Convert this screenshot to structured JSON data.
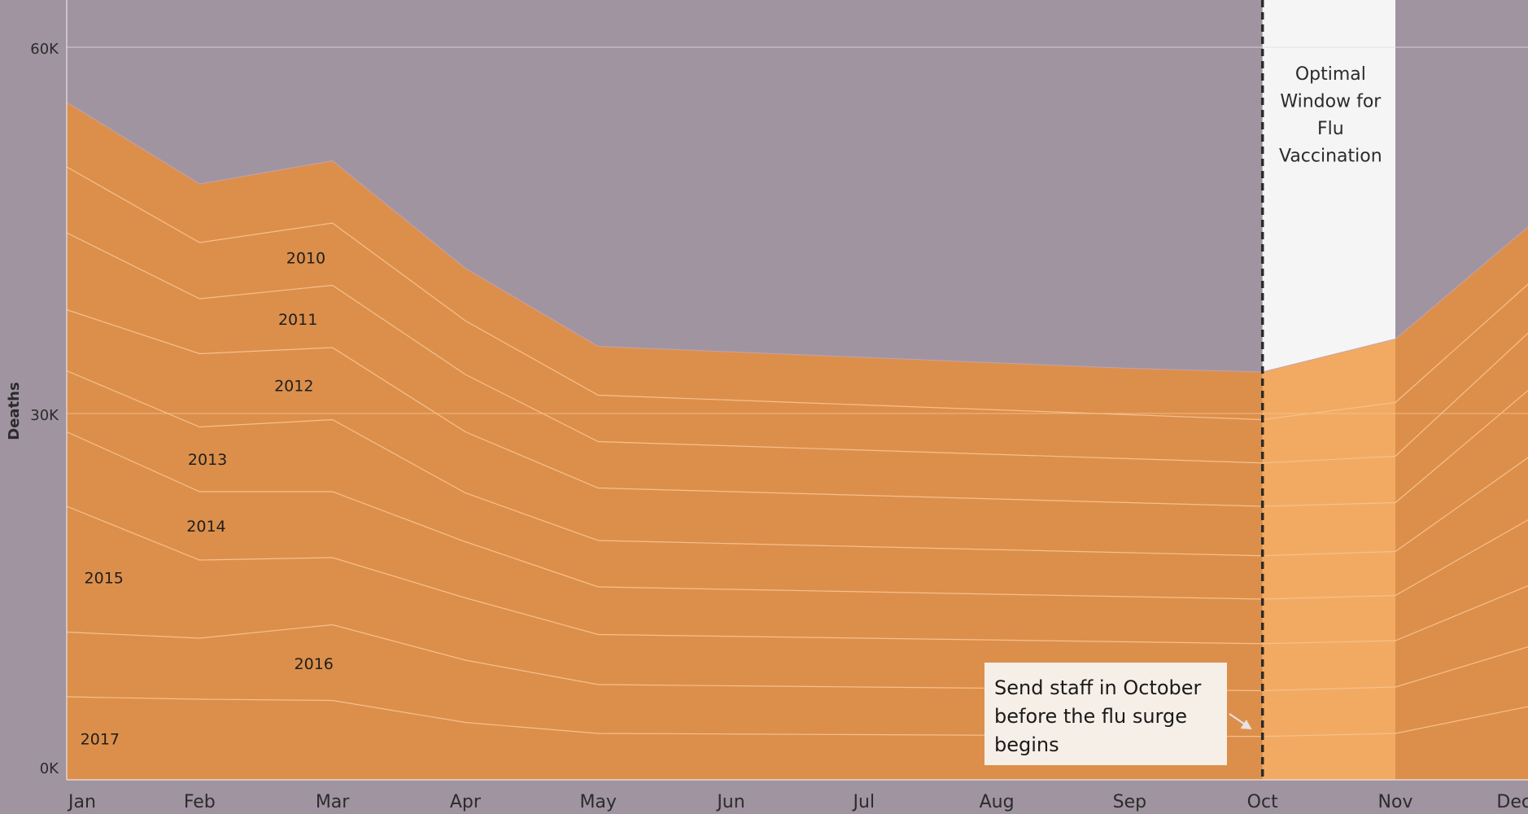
{
  "chart_data": {
    "type": "area",
    "stacked": true,
    "ylabel": "Deaths",
    "xlabel": "",
    "ylim": [
      0,
      63000
    ],
    "y_ticks": [
      {
        "value": 0,
        "label": "0K"
      },
      {
        "value": 30000,
        "label": "30K"
      },
      {
        "value": 60000,
        "label": "60K"
      }
    ],
    "categories": [
      "Jan",
      "Feb",
      "Mar",
      "Apr",
      "May",
      "Jun",
      "Jul",
      "Aug",
      "Sep",
      "Oct",
      "Nov",
      "Dec"
    ],
    "series": [
      {
        "name": "2017",
        "values": [
          6800,
          6600,
          6500,
          4700,
          3800,
          3750,
          3700,
          3650,
          3600,
          3550,
          3800,
          6000
        ]
      },
      {
        "name": "2016",
        "values": [
          5300,
          5000,
          6200,
          5100,
          4000,
          3950,
          3900,
          3850,
          3800,
          3750,
          3800,
          4900
        ]
      },
      {
        "name": "2015",
        "values": [
          10300,
          6400,
          5500,
          5100,
          4100,
          4050,
          4000,
          3950,
          3900,
          3850,
          3800,
          5000
        ]
      },
      {
        "name": "2014",
        "values": [
          6100,
          5600,
          5400,
          4600,
          3900,
          3850,
          3800,
          3750,
          3700,
          3650,
          3700,
          5400
        ]
      },
      {
        "name": "2013",
        "values": [
          5000,
          5300,
          5900,
          4000,
          3800,
          3750,
          3700,
          3650,
          3600,
          3550,
          3600,
          5100
        ]
      },
      {
        "name": "2012",
        "values": [
          5000,
          6000,
          5900,
          5000,
          4300,
          4250,
          4200,
          4150,
          4100,
          4050,
          4000,
          5500
        ]
      },
      {
        "name": "2011",
        "values": [
          6300,
          4500,
          5100,
          4700,
          3800,
          3750,
          3700,
          3650,
          3600,
          3550,
          3800,
          4700
        ]
      },
      {
        "name": "2010",
        "values": [
          5400,
          4600,
          5100,
          4400,
          3800,
          3750,
          3700,
          3650,
          3600,
          3550,
          4400,
          4000
        ]
      },
      {
        "name": "",
        "values": [
          5300,
          4800,
          5100,
          4300,
          4000,
          3950,
          3900,
          3850,
          3800,
          3900,
          5200,
          4700
        ]
      }
    ],
    "window": {
      "from": "Oct",
      "to": "Nov",
      "label_lines": [
        "Optimal",
        "Window for",
        "Flu",
        "Vaccination"
      ]
    },
    "annotation": {
      "lines": [
        "Send staff in October",
        "before the flu surge",
        "begins"
      ],
      "points_to": "Oct"
    },
    "grid": true,
    "colors": {
      "background": "#a094a1",
      "area": "#dc8f4b",
      "area_highlight": "#f2aa62",
      "divider": "#f6c08c",
      "window": "#f5f5f5",
      "callout": "#f6efe7",
      "dashed_line": "#2b2b2b"
    }
  }
}
